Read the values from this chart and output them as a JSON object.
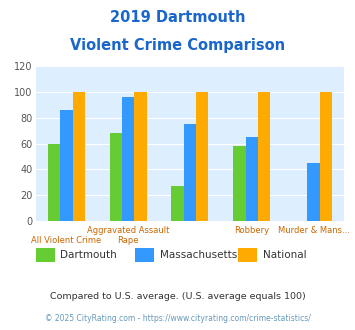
{
  "title_line1": "2019 Dartmouth",
  "title_line2": "Violent Crime Comparison",
  "categories_top": [
    "",
    "Aggravated Assault",
    "",
    "Robbery",
    "Murder & Mans..."
  ],
  "categories_bot": [
    "All Violent Crime",
    "Rape",
    "",
    "",
    ""
  ],
  "series": {
    "Dartmouth": [
      60,
      68,
      27,
      58,
      0
    ],
    "Massachusetts": [
      86,
      96,
      75,
      65,
      45
    ],
    "National": [
      100,
      100,
      100,
      100,
      100
    ]
  },
  "colors": {
    "Dartmouth": "#66cc33",
    "Massachusetts": "#3399ff",
    "National": "#ffaa00"
  },
  "ylim": [
    0,
    120
  ],
  "yticks": [
    0,
    20,
    40,
    60,
    80,
    100,
    120
  ],
  "title_color": "#1a66cc",
  "axis_label_top_color": "#cc6600",
  "axis_label_bot_color": "#cc6600",
  "tick_color": "#555555",
  "background_color": "#ddeeff",
  "footer_text": "Compared to U.S. average. (U.S. average equals 100)",
  "credit_text": "© 2025 CityRating.com - https://www.cityrating.com/crime-statistics/",
  "footer_color": "#333333",
  "credit_color": "#6699bb",
  "n_cats": 5
}
